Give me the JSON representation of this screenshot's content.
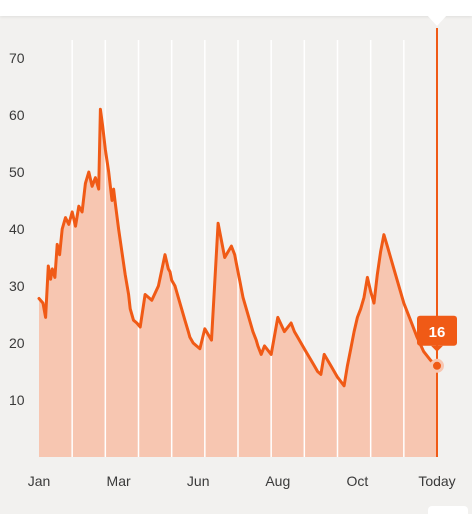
{
  "colors": {
    "background": "#f2f1ef",
    "line": "#f05a16",
    "fill": "#f7c6b1",
    "gridline": "#ffffff",
    "marker": "#f05a16",
    "badge": "#f05a16"
  },
  "chart_data": {
    "type": "area",
    "title": "",
    "xlabel": "",
    "ylabel": "",
    "ylim": [
      0,
      75
    ],
    "y_ticks": [
      10,
      20,
      30,
      40,
      50,
      60,
      70
    ],
    "x_tick_labels": [
      "Jan",
      "Mar",
      "Jun",
      "Aug",
      "Oct",
      "Today"
    ],
    "x_tick_positions": [
      0,
      2.4,
      4.8,
      7.2,
      9.6,
      12
    ],
    "grid": true,
    "legend": "none",
    "series": [
      {
        "x": [
          0,
          0.12,
          0.2,
          0.28,
          0.35,
          0.4,
          0.48,
          0.55,
          0.62,
          0.7,
          0.8,
          0.9,
          1.0,
          1.1,
          1.2,
          1.3,
          1.4,
          1.5,
          1.6,
          1.7,
          1.8,
          1.85,
          1.92,
          2.0,
          2.05,
          2.1,
          2.2,
          2.25,
          2.3,
          2.4,
          2.5,
          2.6,
          2.7,
          2.75,
          2.85,
          2.95,
          3.05,
          3.2,
          3.4,
          3.6,
          3.8,
          3.9,
          3.95,
          4.0,
          4.1,
          4.2,
          4.3,
          4.4,
          4.5,
          4.55,
          4.65,
          4.75,
          4.85,
          5.0,
          5.2,
          5.4,
          5.6,
          5.8,
          5.9,
          5.95,
          6.05,
          6.15,
          6.25,
          6.35,
          6.45,
          6.55,
          6.6,
          6.7,
          6.8,
          7.0,
          7.2,
          7.4,
          7.6,
          7.7,
          7.8,
          7.9,
          8.0,
          8.1,
          8.2,
          8.3,
          8.4,
          8.5,
          8.6,
          8.8,
          9.0,
          9.2,
          9.3,
          9.4,
          9.5,
          9.6,
          9.7,
          9.8,
          9.9,
          10.0,
          10.1,
          10.2,
          10.3,
          10.4,
          10.5,
          10.6,
          10.7,
          10.8,
          10.9,
          11.0,
          11.2,
          11.4,
          11.6,
          11.8,
          12.0
        ],
        "y": [
          27.8,
          27,
          24.5,
          33.5,
          31.2,
          33,
          31.5,
          37.3,
          35.5,
          40,
          42,
          40.8,
          43,
          40.5,
          44,
          43,
          48,
          50,
          47.5,
          49,
          47,
          61,
          58,
          54,
          52,
          50,
          45,
          47,
          44.5,
          40,
          36,
          32,
          28.5,
          26,
          24,
          23.5,
          22.8,
          28.5,
          27.5,
          30,
          35.5,
          33,
          32.5,
          31,
          30,
          28,
          26,
          24,
          22,
          21,
          20,
          19.5,
          19,
          22.5,
          20.5,
          41,
          35,
          37,
          35.5,
          34,
          31,
          28,
          26,
          24,
          22,
          20.5,
          19.5,
          18,
          19.5,
          18,
          24.5,
          22,
          23.5,
          22,
          21,
          20,
          19,
          18,
          17,
          16,
          15,
          14.5,
          18,
          16,
          14,
          12.5,
          16,
          19,
          22,
          24.5,
          26,
          28,
          31.5,
          29,
          27,
          32,
          36,
          39,
          37,
          35,
          33,
          31,
          29,
          27,
          24,
          21,
          18.5,
          17,
          16
        ]
      }
    ],
    "highlight": {
      "x": 12,
      "value": 16,
      "label": "16"
    }
  }
}
